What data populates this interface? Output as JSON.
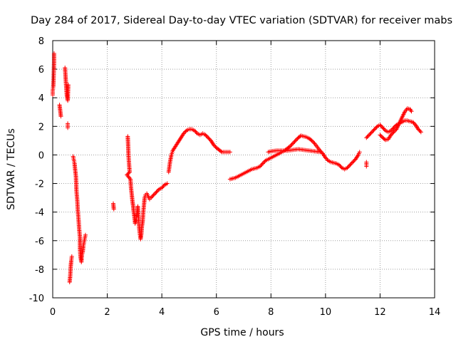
{
  "chart_data": {
    "type": "scatter",
    "title": "Day 284 of 2017, Sidereal Day-to-day VTEC variation (SDTVAR) for receiver mabs",
    "xlabel": "GPS time / hours",
    "ylabel": "SDTVAR / TECUs",
    "xlim": [
      0,
      14
    ],
    "ylim": [
      -10,
      8
    ],
    "xticks": [
      0,
      2,
      4,
      6,
      8,
      10,
      12,
      14
    ],
    "yticks": [
      -10,
      -8,
      -6,
      -4,
      -2,
      0,
      2,
      4,
      6,
      8
    ],
    "grid": true,
    "marker": "+",
    "color": "#ff0000",
    "series": [
      {
        "name": "segment-1",
        "points": [
          [
            0.0,
            4.2
          ],
          [
            0.0,
            4.5
          ],
          [
            0.02,
            4.8
          ],
          [
            0.03,
            5.2
          ],
          [
            0.04,
            5.9
          ],
          [
            0.05,
            6.5
          ],
          [
            0.05,
            7.1
          ],
          [
            0.25,
            3.5
          ],
          [
            0.3,
            2.7
          ],
          [
            0.45,
            6.1
          ],
          [
            0.47,
            5.5
          ],
          [
            0.5,
            4.6
          ],
          [
            0.52,
            4.1
          ],
          [
            0.55,
            3.8
          ],
          [
            0.57,
            4.9
          ],
          [
            0.55,
            2.2
          ],
          [
            0.55,
            1.9
          ]
        ]
      },
      {
        "name": "segment-2",
        "points": [
          [
            0.62,
            -8.9
          ],
          [
            0.64,
            -8.5
          ],
          [
            0.66,
            -7.8
          ],
          [
            0.68,
            -7.4
          ],
          [
            0.7,
            -7.1
          ],
          [
            0.75,
            -0.1
          ],
          [
            0.77,
            -0.3
          ],
          [
            0.8,
            -0.6
          ],
          [
            0.82,
            -1.0
          ],
          [
            0.85,
            -1.5
          ],
          [
            0.87,
            -2.5
          ],
          [
            0.9,
            -3.2
          ],
          [
            0.92,
            -3.9
          ],
          [
            0.95,
            -4.6
          ],
          [
            0.97,
            -5.2
          ],
          [
            1.0,
            -5.8
          ],
          [
            1.0,
            -6.6
          ],
          [
            1.02,
            -7.2
          ],
          [
            1.05,
            -7.5
          ],
          [
            1.07,
            -7.0
          ],
          [
            1.1,
            -6.8
          ],
          [
            1.12,
            -6.4
          ],
          [
            1.15,
            -6.1
          ],
          [
            1.18,
            -5.8
          ],
          [
            1.2,
            -5.6
          ]
        ]
      },
      {
        "name": "segment-3",
        "points": [
          [
            2.22,
            -3.4
          ],
          [
            2.24,
            -3.8
          ]
        ]
      },
      {
        "name": "segment-4",
        "points": [
          [
            2.75,
            1.3
          ],
          [
            2.76,
            0.9
          ],
          [
            2.77,
            0.4
          ],
          [
            2.78,
            -0.1
          ],
          [
            2.8,
            -0.7
          ],
          [
            2.82,
            -1.2
          ],
          [
            2.72,
            -1.4
          ],
          [
            2.85,
            -1.7
          ],
          [
            2.87,
            -2.3
          ],
          [
            2.9,
            -2.8
          ],
          [
            2.92,
            -3.2
          ],
          [
            2.95,
            -3.6
          ],
          [
            2.97,
            -4.0
          ],
          [
            3.0,
            -4.4
          ],
          [
            3.02,
            -4.8
          ],
          [
            3.05,
            -4.6
          ],
          [
            3.07,
            -4.3
          ],
          [
            3.1,
            -4.0
          ],
          [
            3.12,
            -3.6
          ],
          [
            3.15,
            -4.5
          ],
          [
            3.17,
            -5.1
          ],
          [
            3.2,
            -5.6
          ],
          [
            3.22,
            -5.9
          ],
          [
            3.25,
            -5.5
          ],
          [
            3.27,
            -5.0
          ],
          [
            3.3,
            -4.6
          ],
          [
            3.32,
            -4.0
          ],
          [
            3.35,
            -3.4
          ],
          [
            3.37,
            -3.0
          ],
          [
            3.4,
            -2.8
          ],
          [
            3.45,
            -2.7
          ],
          [
            3.5,
            -2.9
          ],
          [
            3.55,
            -3.1
          ],
          [
            3.6,
            -3.0
          ],
          [
            3.7,
            -2.8
          ],
          [
            3.8,
            -2.6
          ],
          [
            3.9,
            -2.4
          ],
          [
            4.0,
            -2.3
          ],
          [
            4.1,
            -2.1
          ],
          [
            4.2,
            -2.0
          ]
        ]
      },
      {
        "name": "segment-5",
        "points": [
          [
            4.25,
            -1.2
          ],
          [
            4.3,
            -0.5
          ],
          [
            4.35,
            0.0
          ],
          [
            4.4,
            0.3
          ],
          [
            4.5,
            0.6
          ],
          [
            4.6,
            0.9
          ],
          [
            4.7,
            1.2
          ],
          [
            4.8,
            1.5
          ],
          [
            4.9,
            1.7
          ],
          [
            5.0,
            1.8
          ],
          [
            5.1,
            1.8
          ],
          [
            5.2,
            1.7
          ],
          [
            5.3,
            1.5
          ],
          [
            5.4,
            1.4
          ],
          [
            5.5,
            1.5
          ],
          [
            5.6,
            1.4
          ],
          [
            5.7,
            1.2
          ],
          [
            5.8,
            1.0
          ],
          [
            5.9,
            0.7
          ],
          [
            6.0,
            0.5
          ],
          [
            6.1,
            0.35
          ],
          [
            6.2,
            0.2
          ],
          [
            6.3,
            0.2
          ],
          [
            6.4,
            0.2
          ],
          [
            6.5,
            0.2
          ]
        ]
      },
      {
        "name": "segment-6",
        "points": [
          [
            6.5,
            -1.7
          ],
          [
            6.6,
            -1.65
          ],
          [
            6.7,
            -1.6
          ],
          [
            6.8,
            -1.5
          ],
          [
            6.9,
            -1.4
          ],
          [
            7.0,
            -1.3
          ],
          [
            7.1,
            -1.2
          ],
          [
            7.2,
            -1.1
          ],
          [
            7.3,
            -1.0
          ],
          [
            7.4,
            -0.95
          ],
          [
            7.5,
            -0.9
          ],
          [
            7.6,
            -0.8
          ],
          [
            7.7,
            -0.6
          ],
          [
            7.8,
            -0.4
          ],
          [
            7.9,
            -0.3
          ],
          [
            8.0,
            -0.2
          ],
          [
            8.1,
            -0.1
          ],
          [
            8.2,
            0.0
          ],
          [
            8.3,
            0.1
          ],
          [
            8.4,
            0.2
          ],
          [
            8.5,
            0.3
          ],
          [
            8.6,
            0.45
          ],
          [
            8.7,
            0.6
          ],
          [
            8.8,
            0.8
          ],
          [
            8.9,
            1.0
          ],
          [
            9.0,
            1.2
          ],
          [
            9.1,
            1.35
          ],
          [
            9.2,
            1.3
          ],
          [
            9.3,
            1.25
          ],
          [
            9.4,
            1.15
          ],
          [
            9.5,
            1.0
          ],
          [
            9.6,
            0.8
          ],
          [
            9.7,
            0.55
          ],
          [
            9.8,
            0.3
          ],
          [
            9.9,
            0.1
          ],
          [
            10.0,
            -0.2
          ],
          [
            10.1,
            -0.4
          ],
          [
            10.2,
            -0.5
          ],
          [
            10.3,
            -0.55
          ],
          [
            10.4,
            -0.6
          ],
          [
            10.5,
            -0.7
          ],
          [
            10.6,
            -0.9
          ],
          [
            10.7,
            -1.0
          ],
          [
            10.8,
            -0.9
          ],
          [
            10.9,
            -0.7
          ],
          [
            11.0,
            -0.5
          ],
          [
            11.1,
            -0.3
          ],
          [
            11.2,
            0.0
          ],
          [
            11.25,
            0.2
          ]
        ]
      },
      {
        "name": "segment-7",
        "points": [
          [
            7.9,
            0.2
          ],
          [
            8.0,
            0.25
          ],
          [
            8.2,
            0.3
          ],
          [
            8.4,
            0.3
          ],
          [
            8.6,
            0.3
          ],
          [
            8.8,
            0.35
          ],
          [
            9.0,
            0.4
          ],
          [
            9.2,
            0.35
          ],
          [
            9.4,
            0.3
          ],
          [
            9.6,
            0.25
          ],
          [
            9.8,
            0.2
          ]
        ]
      },
      {
        "name": "segment-8",
        "points": [
          [
            11.5,
            -0.5
          ],
          [
            11.5,
            -0.8
          ]
        ]
      },
      {
        "name": "segment-9",
        "points": [
          [
            11.5,
            1.2
          ],
          [
            11.6,
            1.4
          ],
          [
            11.7,
            1.6
          ],
          [
            11.8,
            1.8
          ],
          [
            11.9,
            2.0
          ],
          [
            12.0,
            2.1
          ],
          [
            12.1,
            1.9
          ],
          [
            12.2,
            1.7
          ],
          [
            12.3,
            1.6
          ],
          [
            12.4,
            1.7
          ],
          [
            12.5,
            1.9
          ],
          [
            12.6,
            2.1
          ],
          [
            12.7,
            2.2
          ],
          [
            12.8,
            2.3
          ],
          [
            12.9,
            2.4
          ],
          [
            13.0,
            2.4
          ],
          [
            13.1,
            2.35
          ],
          [
            13.2,
            2.3
          ],
          [
            13.3,
            2.1
          ],
          [
            13.4,
            1.8
          ],
          [
            13.5,
            1.6
          ]
        ]
      },
      {
        "name": "segment-10",
        "points": [
          [
            12.0,
            1.4
          ],
          [
            12.1,
            1.2
          ],
          [
            12.2,
            1.05
          ],
          [
            12.3,
            1.1
          ],
          [
            12.4,
            1.4
          ],
          [
            12.5,
            1.6
          ],
          [
            12.6,
            1.8
          ],
          [
            12.7,
            2.2
          ],
          [
            12.8,
            2.6
          ],
          [
            12.9,
            3.0
          ],
          [
            13.0,
            3.25
          ],
          [
            13.1,
            3.2
          ],
          [
            13.15,
            3.05
          ]
        ]
      }
    ]
  }
}
